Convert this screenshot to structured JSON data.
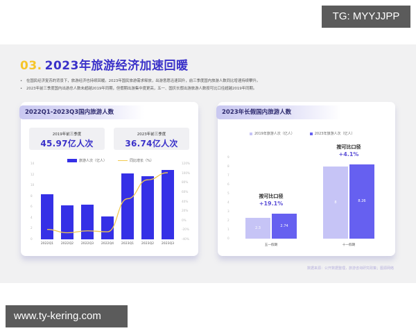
{
  "watermarks": {
    "top_right": "TG: MYYJJPP",
    "bottom_left": "www.ty-kering.com"
  },
  "slide": {
    "section_number": "03.",
    "title": "2023年旅游经济加速回暖",
    "bullets": [
      "在国民经济复苏的背景下，旅游经济也持续回暖。2023年国民旅游需求释放，出游意愿迅速回升，前三季度国内旅游人数同比增速持续攀升。",
      "2023年前三季度国内出游总人数未超越2019年同期，但假期出游集中度更高，五一、国庆长假出游旅游人数按可比口径超越2019年同期。"
    ],
    "source": "数据来源：公开数据整理，旅游咨询研究政策；图源网络",
    "colors": {
      "accent_purple": "#3a31c9",
      "accent_yellow": "#f6c52a",
      "bar_blue": "#3530e6",
      "line_yellow": "#f2c94c",
      "bar_2019": "#c6c4f6",
      "bar_2023": "#6660f0"
    }
  },
  "left_card": {
    "header": "2022Q1-2023Q3国内旅游人数",
    "stats": [
      {
        "label": "2019年前三季度",
        "value": "45.97亿人次"
      },
      {
        "label": "2023年前三季度",
        "value": "36.74亿人次"
      }
    ],
    "legend": {
      "bar": "旅游人次（亿人）",
      "line": "同比增长（%）"
    }
  },
  "right_card": {
    "header": "2023年长假国内旅游人数",
    "legend": {
      "s2019": "2019年旅游人次（亿人）",
      "s2023": "2023年旅游人次（亿人）"
    },
    "annotations": [
      {
        "label": "按可比口径",
        "value": "+19.1%"
      },
      {
        "label": "按可比口径",
        "value": "+4.1%"
      }
    ]
  },
  "chart_data": [
    {
      "type": "bar",
      "title": "2022Q1-2023Q3国内旅游人数",
      "categories": [
        "2022Q1",
        "2022Q2",
        "2022Q3",
        "2022Q4",
        "2023Q1",
        "2023Q2",
        "2023Q3"
      ],
      "series": [
        {
          "name": "旅游人次（亿人）",
          "type": "bar",
          "axis": "left",
          "values": [
            8.3,
            6.25,
            6.39,
            4.2,
            12.16,
            11.68,
            12.9
          ]
        },
        {
          "name": "同比增长（%）",
          "type": "line",
          "axis": "right",
          "values": [
            -19,
            -26,
            -22,
            -24,
            46,
            86,
            101
          ]
        }
      ],
      "y_left": {
        "ticks": [
          0,
          2,
          4,
          6,
          8,
          10,
          12,
          14
        ],
        "ylim": [
          0,
          14
        ]
      },
      "y_right": {
        "ticks": [
          "-40%",
          "-20%",
          "0%",
          "20%",
          "40%",
          "60%",
          "80%",
          "100%",
          "120%"
        ],
        "ylim": [
          -40,
          120
        ]
      },
      "legend_position": "top",
      "grid": false
    },
    {
      "type": "bar",
      "title": "2023年长假国内旅游人数",
      "categories": [
        "五一假期",
        "十一假期"
      ],
      "series": [
        {
          "name": "2019年旅游人次（亿人）",
          "values": [
            2.3,
            8
          ]
        },
        {
          "name": "2023年旅游人次（亿人）",
          "values": [
            2.74,
            8.26
          ]
        }
      ],
      "annotations": [
        "按可比口径 +19.1%",
        "按可比口径 +4.1%"
      ],
      "y": {
        "ticks": [
          0,
          1,
          2,
          3,
          4,
          5,
          6,
          7,
          8,
          9
        ],
        "ylim": [
          0,
          9
        ]
      },
      "legend_position": "top",
      "grid": false
    }
  ]
}
